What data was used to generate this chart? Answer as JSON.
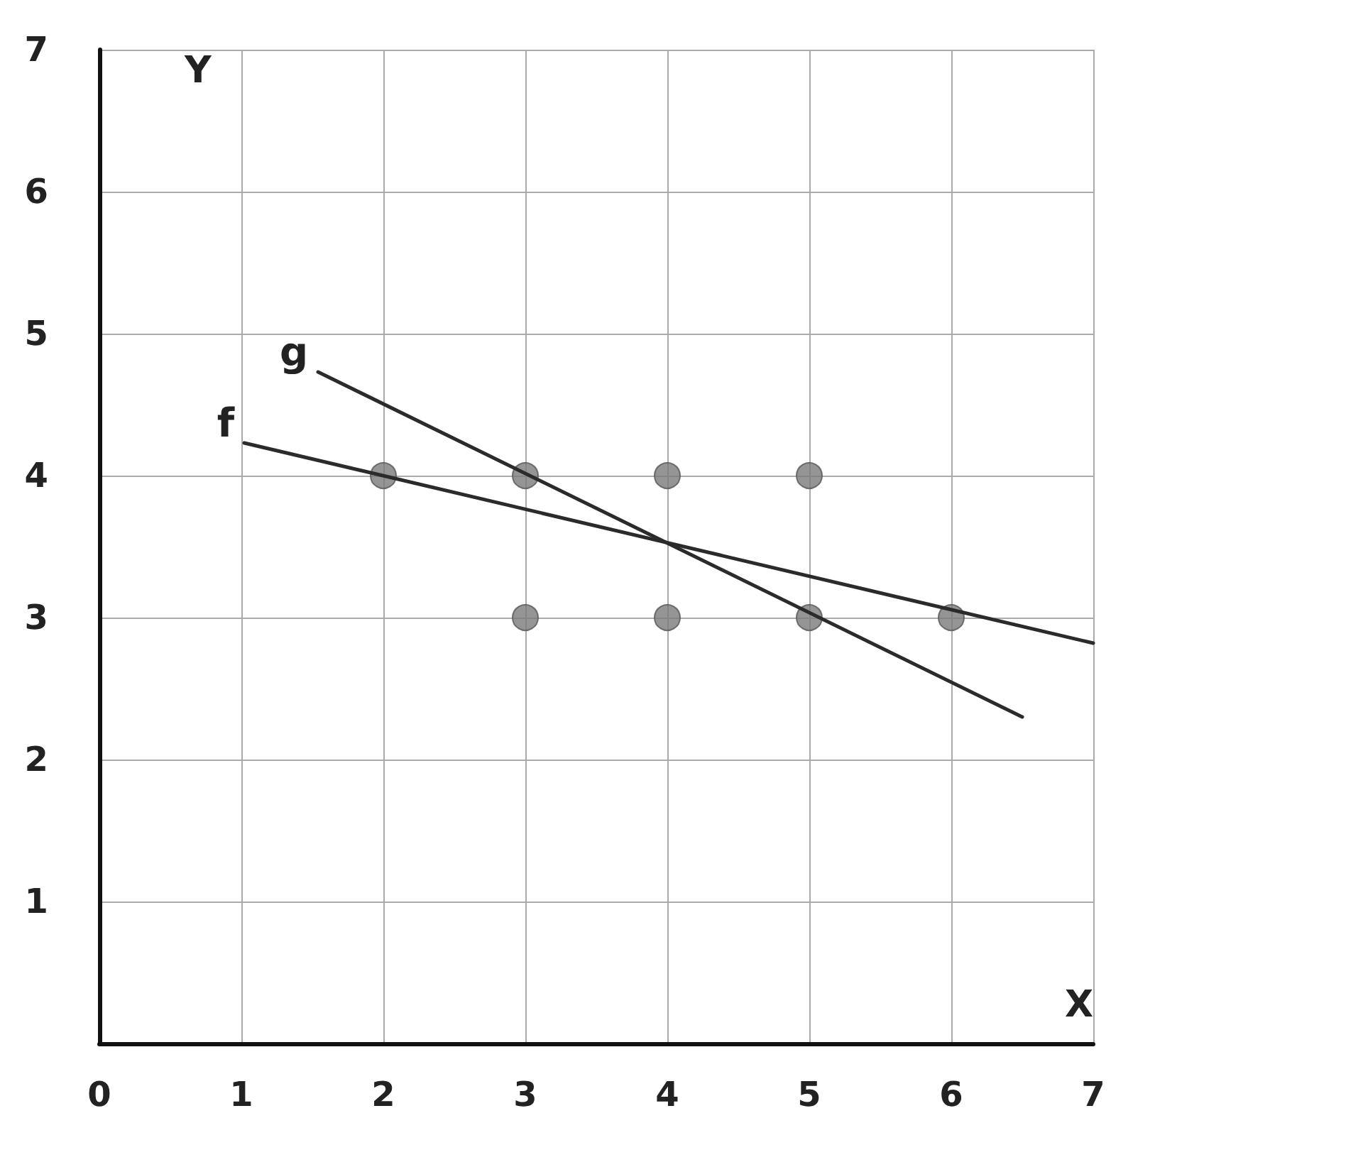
{
  "chart_data": {
    "type": "scatter",
    "xlabel": "X",
    "ylabel": "Y",
    "xlim": [
      0,
      7
    ],
    "ylim": [
      0,
      7
    ],
    "xticks": [
      0,
      1,
      2,
      3,
      4,
      5,
      6,
      7
    ],
    "yticks": [
      {
        "value": 0,
        "label": null
      },
      1,
      2,
      3,
      4,
      5,
      6,
      7
    ],
    "grid": true,
    "legend": false,
    "series": [
      {
        "type": "scatter",
        "marker": "circle",
        "color": "#7a7a7a",
        "x": [
          2,
          3,
          4,
          5,
          3,
          4,
          5,
          6
        ],
        "values": [
          4,
          4,
          4,
          4,
          3,
          3,
          3,
          3
        ]
      },
      {
        "type": "line",
        "name": "f",
        "marker": "none",
        "color": "#2b2b2b",
        "x": [
          1.02,
          7
        ],
        "values": [
          4.23,
          2.82
        ]
      },
      {
        "type": "line",
        "name": "g",
        "marker": "none",
        "color": "#2b2b2b",
        "x": [
          1.54,
          6.5
        ],
        "values": [
          4.73,
          2.3
        ]
      }
    ]
  }
}
